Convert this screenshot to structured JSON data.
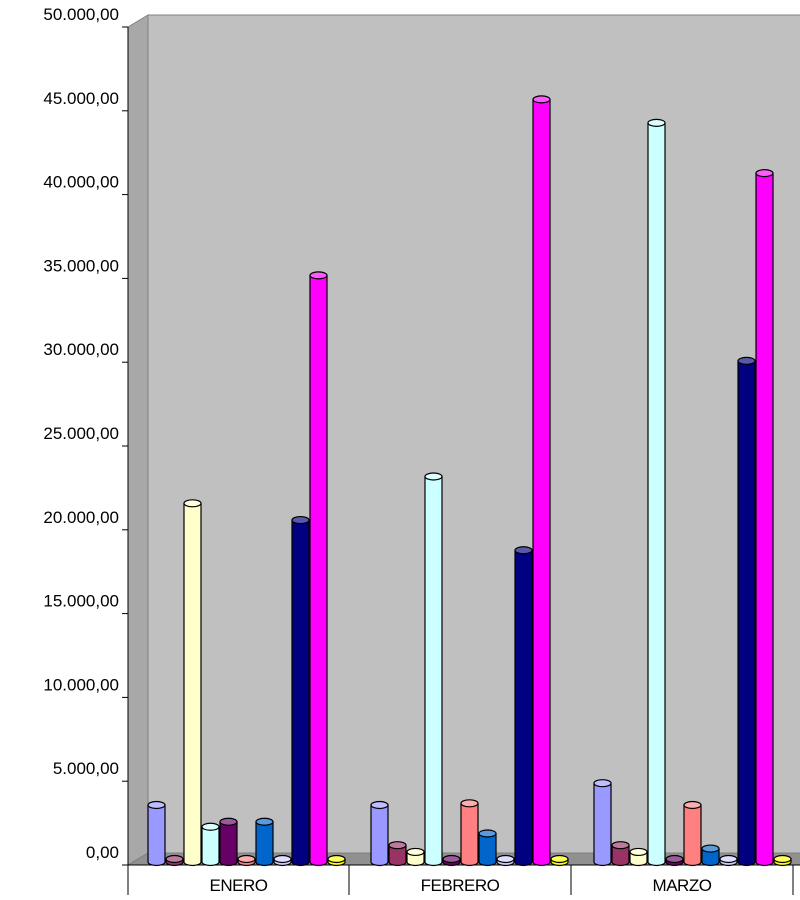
{
  "chart_data": {
    "type": "bar",
    "style": "3d-cylinder",
    "categories": [
      "ENERO",
      "FEBRERO",
      "MARZO"
    ],
    "ylim": [
      0,
      50000
    ],
    "yticks": [
      "0,00",
      "5.000,00",
      "10.000,00",
      "15.000,00",
      "20.000,00",
      "25.000,00",
      "30.000,00",
      "35.000,00",
      "40.000,00",
      "45.000,00",
      "50.000,00"
    ],
    "grid": false,
    "legend": "none",
    "series": [
      {
        "color": "#9999ff",
        "values": [
          3700,
          3700,
          5000
        ]
      },
      {
        "color": "#993366",
        "values": [
          300,
          1300,
          1300
        ]
      },
      {
        "color": "#ffffcc",
        "values": [
          21700,
          900,
          900
        ]
      },
      {
        "color": "#ccffff",
        "values": [
          2400,
          23300,
          44400
        ]
      },
      {
        "color": "#660066",
        "values": [
          2700,
          100,
          100
        ]
      },
      {
        "color": "#ff8080",
        "values": [
          100,
          3800,
          3700
        ]
      },
      {
        "color": "#0066cc",
        "values": [
          2700,
          2000,
          1100
        ]
      },
      {
        "color": "#ccccff",
        "values": [
          50,
          50,
          50
        ]
      },
      {
        "color": "#000080",
        "values": [
          20700,
          18900,
          30200
        ]
      },
      {
        "color": "#ff00ff",
        "values": [
          35300,
          45800,
          41400
        ]
      },
      {
        "color": "#ffff00",
        "values": [
          50,
          50,
          50
        ]
      }
    ]
  }
}
